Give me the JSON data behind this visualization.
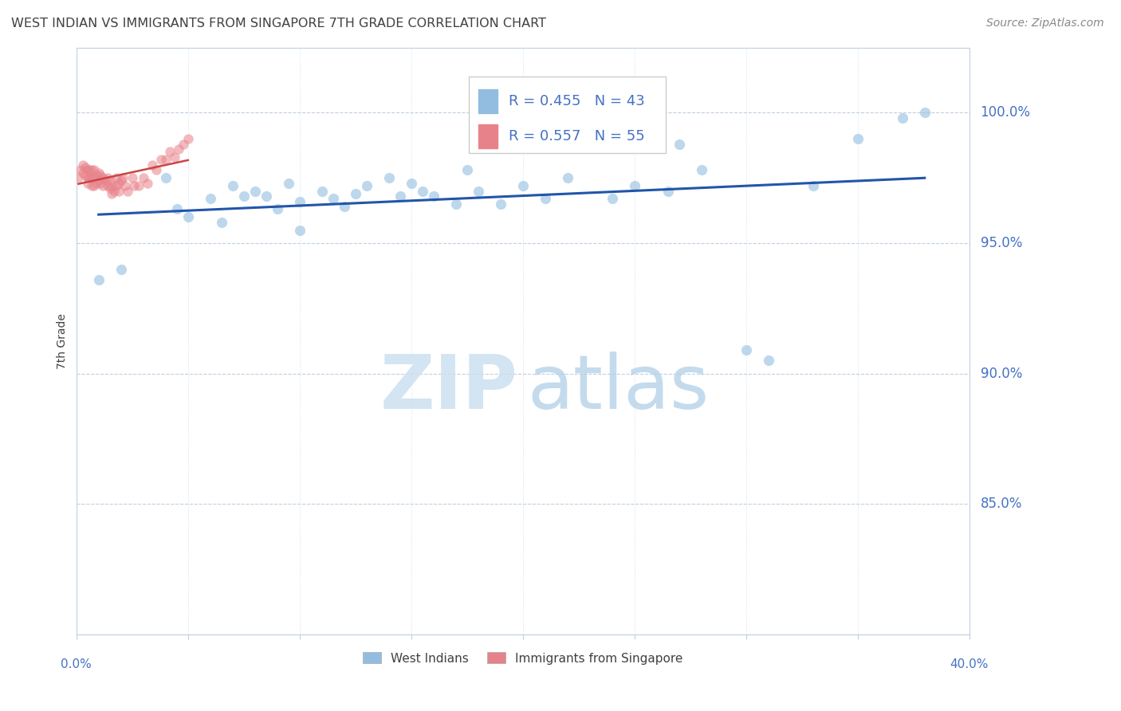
{
  "title": "WEST INDIAN VS IMMIGRANTS FROM SINGAPORE 7TH GRADE CORRELATION CHART",
  "source": "Source: ZipAtlas.com",
  "ylabel": "7th Grade",
  "ytick_labels": [
    "100.0%",
    "95.0%",
    "90.0%",
    "85.0%"
  ],
  "ytick_values": [
    1.0,
    0.95,
    0.9,
    0.85
  ],
  "xlim": [
    0.0,
    0.4
  ],
  "ylim": [
    0.8,
    1.025
  ],
  "blue_color": "#92bde0",
  "pink_color": "#e8828a",
  "trendline_blue": "#2255aa",
  "trendline_pink": "#cc4444",
  "legend_R_blue": "0.455",
  "legend_N_blue": "43",
  "legend_R_pink": "0.557",
  "legend_N_pink": "55",
  "legend_label_blue": "West Indians",
  "legend_label_pink": "Immigrants from Singapore",
  "blue_scatter_x": [
    0.01,
    0.02,
    0.04,
    0.045,
    0.05,
    0.06,
    0.065,
    0.07,
    0.075,
    0.08,
    0.085,
    0.09,
    0.095,
    0.1,
    0.1,
    0.11,
    0.115,
    0.12,
    0.125,
    0.13,
    0.14,
    0.145,
    0.15,
    0.155,
    0.16,
    0.17,
    0.175,
    0.18,
    0.19,
    0.2,
    0.21,
    0.22,
    0.24,
    0.25,
    0.265,
    0.27,
    0.28,
    0.3,
    0.31,
    0.33,
    0.35,
    0.37,
    0.38
  ],
  "blue_scatter_y": [
    0.936,
    0.94,
    0.975,
    0.963,
    0.96,
    0.967,
    0.958,
    0.972,
    0.968,
    0.97,
    0.968,
    0.963,
    0.973,
    0.966,
    0.955,
    0.97,
    0.967,
    0.964,
    0.969,
    0.972,
    0.975,
    0.968,
    0.973,
    0.97,
    0.968,
    0.965,
    0.978,
    0.97,
    0.965,
    0.972,
    0.967,
    0.975,
    0.967,
    0.972,
    0.97,
    0.988,
    0.978,
    0.909,
    0.905,
    0.972,
    0.99,
    0.998,
    1.0
  ],
  "pink_scatter_x": [
    0.001,
    0.002,
    0.003,
    0.003,
    0.004,
    0.004,
    0.005,
    0.005,
    0.005,
    0.006,
    0.006,
    0.007,
    0.007,
    0.007,
    0.008,
    0.008,
    0.008,
    0.009,
    0.009,
    0.01,
    0.01,
    0.011,
    0.011,
    0.012,
    0.012,
    0.013,
    0.014,
    0.014,
    0.015,
    0.015,
    0.016,
    0.016,
    0.017,
    0.018,
    0.018,
    0.019,
    0.019,
    0.02,
    0.021,
    0.022,
    0.023,
    0.025,
    0.026,
    0.028,
    0.03,
    0.032,
    0.034,
    0.036,
    0.038,
    0.04,
    0.042,
    0.044,
    0.046,
    0.048,
    0.05
  ],
  "pink_scatter_y": [
    0.975,
    0.978,
    0.98,
    0.977,
    0.979,
    0.976,
    0.978,
    0.975,
    0.973,
    0.978,
    0.975,
    0.978,
    0.975,
    0.972,
    0.978,
    0.975,
    0.972,
    0.976,
    0.973,
    0.977,
    0.974,
    0.976,
    0.973,
    0.975,
    0.972,
    0.974,
    0.975,
    0.972,
    0.974,
    0.971,
    0.972,
    0.969,
    0.97,
    0.975,
    0.972,
    0.973,
    0.97,
    0.974,
    0.975,
    0.972,
    0.97,
    0.975,
    0.972,
    0.972,
    0.975,
    0.973,
    0.98,
    0.978,
    0.982,
    0.982,
    0.985,
    0.983,
    0.986,
    0.988,
    0.99
  ],
  "grid_color": "#c0cfe0",
  "text_color": "#4472c4",
  "title_color": "#404040",
  "source_color": "#888888"
}
